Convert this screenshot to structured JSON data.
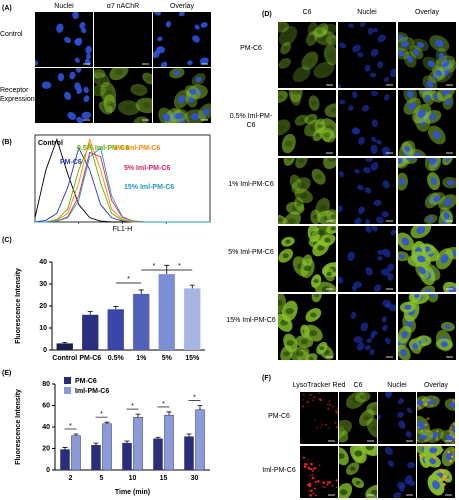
{
  "panels": {
    "A": {
      "label": "(A)",
      "column_headers": [
        "Nuclei",
        "α7 nAChR",
        "Overlay"
      ],
      "row_labels": [
        "Control",
        "Receptor Expression"
      ]
    },
    "B": {
      "label": "(B)"
    },
    "C": {
      "label": "(C)"
    },
    "D": {
      "label": "(D)",
      "column_headers": [
        "C6",
        "Nuclei",
        "Overlay"
      ],
      "row_labels": [
        "PM-C6",
        "0.5% Iml-PM-C6",
        "1% Iml-PM-C6",
        "5% Iml-PM-C6",
        "15% Iml-PM-C6"
      ]
    },
    "E": {
      "label": "(E)"
    },
    "F": {
      "label": "(F)",
      "column_headers": [
        "LysoTracker Red",
        "C6",
        "Nuclei",
        "Overlay"
      ],
      "row_labels": [
        "PM-C6",
        "Iml-PM-C6"
      ]
    }
  },
  "chart_data": [
    {
      "type": "histogram_curves",
      "x_label": "FL1-H",
      "x": [
        0,
        0.25,
        0.5,
        0.75,
        1,
        1.25,
        1.5,
        1.75,
        2,
        2.25,
        2.5,
        3,
        4
      ],
      "xlim": [
        0,
        4
      ],
      "ylim": [
        0,
        100
      ],
      "series": [
        {
          "name": "Control",
          "color": "#000000",
          "values": [
            5,
            60,
            95,
            55,
            20,
            5,
            1,
            0,
            0,
            0,
            0,
            0,
            0
          ]
        },
        {
          "name": "PM-C6",
          "color": "#2233cc",
          "values": [
            0,
            2,
            10,
            40,
            85,
            60,
            20,
            5,
            1,
            0,
            0,
            0,
            0
          ]
        },
        {
          "name": "0.5% Iml-PM-C6",
          "color": "#66aa00",
          "values": [
            0,
            0,
            3,
            15,
            60,
            90,
            45,
            10,
            2,
            0,
            0,
            0,
            0
          ]
        },
        {
          "name": "1% Iml-PM-C6",
          "color": "#ff8800",
          "values": [
            0,
            0,
            2,
            10,
            45,
            95,
            60,
            15,
            3,
            0,
            0,
            0,
            0
          ]
        },
        {
          "name": "5% Iml-PM-C6",
          "color": "#dd2266",
          "values": [
            0,
            0,
            1,
            6,
            30,
            80,
            75,
            25,
            5,
            1,
            0,
            0,
            0
          ]
        },
        {
          "name": "15% Iml-PM-C6",
          "color": "#2299bb",
          "values": [
            0,
            0,
            1,
            5,
            25,
            75,
            85,
            30,
            6,
            1,
            0,
            0,
            0
          ]
        }
      ]
    },
    {
      "type": "bar",
      "y_label": "Fluorescence Intensity",
      "categories": [
        "Control",
        "PM-C6",
        "0.5%",
        "1%",
        "5%",
        "15%"
      ],
      "values": [
        3,
        16,
        18.5,
        25.5,
        34.5,
        28
      ],
      "errors": [
        0.4,
        1.5,
        1.3,
        1.8,
        4,
        1.5
      ],
      "colors": [
        "#1a1f4f",
        "#2b2f80",
        "#3a47a8",
        "#5261b8",
        "#7b90d4",
        "#a7b5e3"
      ],
      "ylim": [
        0,
        40
      ],
      "yticks": [
        0,
        10,
        20,
        30,
        40
      ],
      "significance_labels": [
        "*",
        "*",
        "*"
      ]
    },
    {
      "type": "grouped_bar",
      "y_label": "Fluorescence Intensity",
      "x_label": "Time (min)",
      "categories": [
        "2",
        "5",
        "10",
        "15",
        "30"
      ],
      "series": [
        {
          "name": "PM-C6",
          "color": "#2a2d7a",
          "values": [
            19,
            23,
            25,
            29,
            31
          ],
          "errors": [
            2,
            2,
            2,
            1.5,
            2.5
          ]
        },
        {
          "name": "Iml-PM-C6",
          "color": "#8b9bd8",
          "values": [
            32,
            43,
            49,
            51,
            56
          ],
          "errors": [
            1.5,
            1.5,
            3,
            3,
            4
          ]
        }
      ],
      "ylim": [
        0,
        80
      ],
      "yticks": [
        0,
        20,
        40,
        60,
        80
      ],
      "significance_labels": [
        "*",
        "*",
        "*",
        "*",
        "*"
      ]
    }
  ]
}
